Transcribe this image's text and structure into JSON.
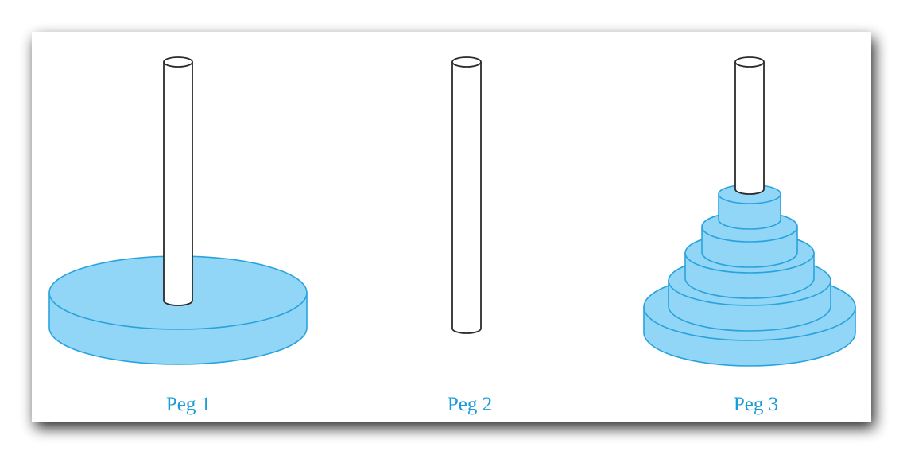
{
  "pegs": [
    {
      "label": "Peg 1",
      "disk_count": 1
    },
    {
      "label": "Peg 2",
      "disk_count": 0
    },
    {
      "label": "Peg 3",
      "disk_count": 5
    }
  ],
  "colors": {
    "disk_fill": "#92d6f7",
    "disk_stroke": "#2aa3dc",
    "peg_fill": "#ffffff",
    "peg_stroke": "#2b2b2b",
    "label": "#1a9ad6",
    "panel": "#ffffff",
    "shadow": "#000000"
  }
}
